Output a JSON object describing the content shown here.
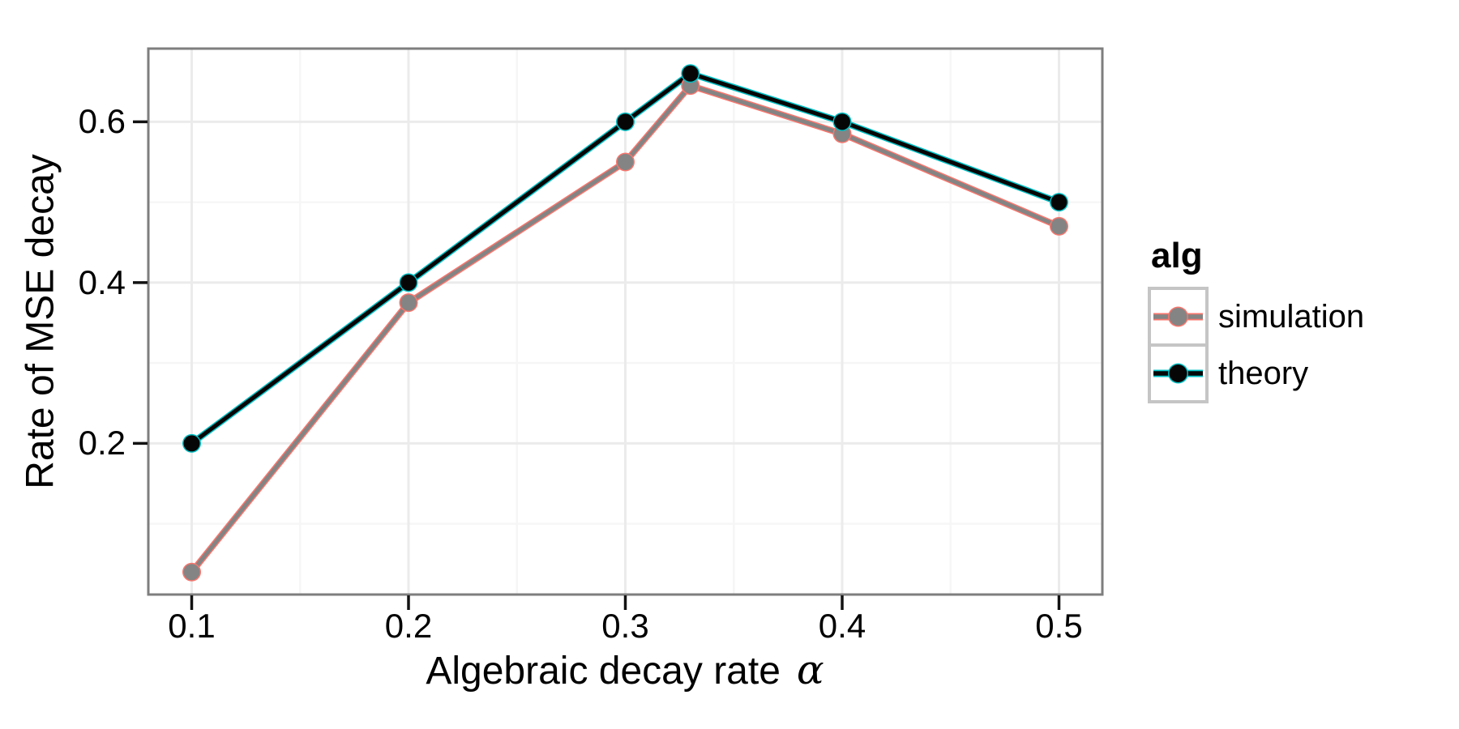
{
  "chart_data": {
    "type": "line",
    "title": "",
    "xlabel": "Algebraic decay rate α",
    "xlabel_text": "Algebraic decay rate",
    "xlabel_symbol": "α",
    "ylabel": "Rate of MSE decay",
    "xlim": [
      0.08,
      0.52
    ],
    "ylim": [
      0.012,
      0.691
    ],
    "grid": true,
    "x_ticks": [
      0.1,
      0.2,
      0.3,
      0.4,
      0.5
    ],
    "x_tick_labels": [
      "0.1",
      "0.2",
      "0.3",
      "0.4",
      "0.5"
    ],
    "x_minor_ticks": [
      0.15,
      0.25,
      0.35,
      0.45
    ],
    "y_ticks": [
      0.2,
      0.4,
      0.6
    ],
    "y_tick_labels": [
      "0.2",
      "0.4",
      "0.6"
    ],
    "y_minor_ticks": [
      0.1,
      0.3,
      0.5
    ],
    "legend": {
      "title": "alg",
      "position": "right",
      "entries": [
        {
          "label": "simulation",
          "series": "simulation"
        },
        {
          "label": "theory",
          "series": "theory"
        }
      ]
    },
    "series": [
      {
        "name": "simulation",
        "x": [
          0.1,
          0.2,
          0.3,
          0.33,
          0.4,
          0.5
        ],
        "values": [
          0.04,
          0.375,
          0.55,
          0.645,
          0.585,
          0.47
        ],
        "color": "#848484",
        "halo_color": "#F8766D",
        "marker": "circle"
      },
      {
        "name": "theory",
        "x": [
          0.1,
          0.2,
          0.3,
          0.33,
          0.4,
          0.5
        ],
        "values": [
          0.2,
          0.4,
          0.6,
          0.66,
          0.6,
          0.5
        ],
        "color": "#060606",
        "halo_color": "#00BFC4",
        "marker": "circle"
      }
    ],
    "colors": {
      "panel_background": "#ffffff",
      "panel_border": "#7e7e7e",
      "grid_major": "#ebebeb",
      "grid_minor": "#f6f6f6",
      "tick_mark": "#121212",
      "text": "#000000",
      "legend_key_border": "#c5c5c5"
    }
  }
}
